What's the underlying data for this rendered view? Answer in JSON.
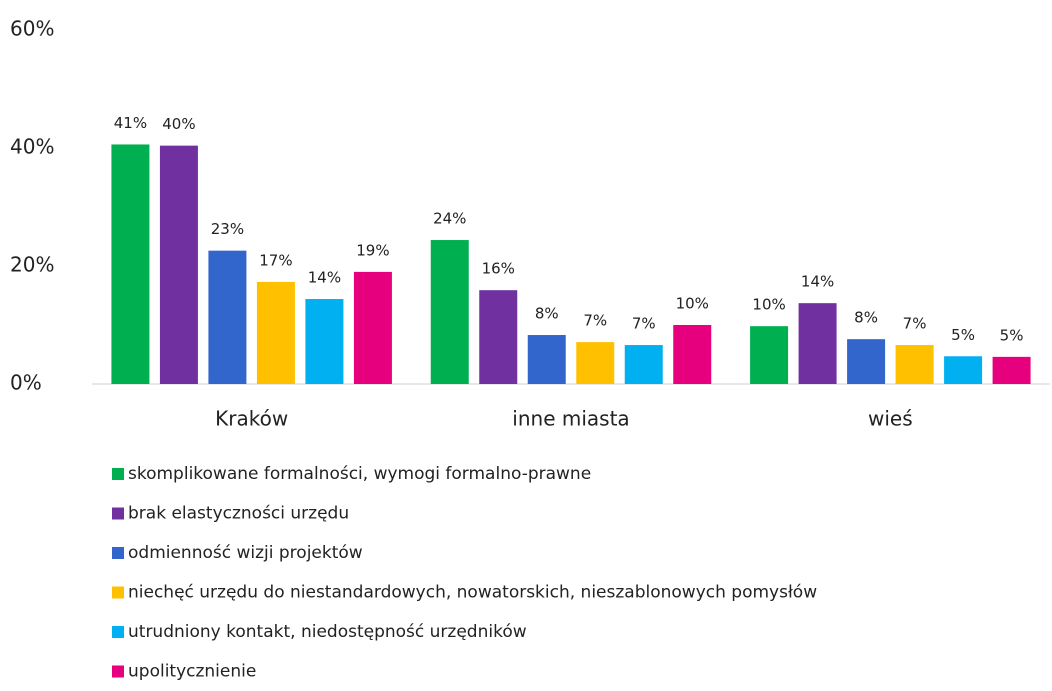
{
  "chart_data": {
    "type": "bar",
    "categories": [
      "Kraków",
      "inne miasta",
      "wieś"
    ],
    "series": [
      {
        "name": "skomplikowane formalności, wymogi formalno-prawne",
        "color": "#00b050",
        "values": [
          40.6,
          24.4,
          9.8
        ],
        "value_labels": [
          "41%",
          "24%",
          "10%"
        ]
      },
      {
        "name": "brak elastyczności urzędu",
        "color": "#7030a0",
        "values": [
          40.4,
          15.9,
          13.7
        ],
        "value_labels": [
          "40%",
          "16%",
          "14%"
        ]
      },
      {
        "name": "odmienność wizji projektów",
        "color": "#3366cc",
        "values": [
          22.6,
          8.3,
          7.6
        ],
        "value_labels": [
          "23%",
          "8%",
          "8%"
        ]
      },
      {
        "name": "niechęć urzędu do niestandardowych, nowatorskich, nieszablonowych pomysłów",
        "color": "#ffc000",
        "values": [
          17.3,
          7.1,
          6.6
        ],
        "value_labels": [
          "17%",
          "7%",
          "7%"
        ]
      },
      {
        "name": "utrudniony kontakt, niedostępność urzędników",
        "color": "#00b0f0",
        "values": [
          14.4,
          6.6,
          4.7
        ],
        "value_labels": [
          "14%",
          "7%",
          "5%"
        ]
      },
      {
        "name": "upolitycznienie",
        "color": "#e6007e",
        "values": [
          19.0,
          10.0,
          4.6
        ],
        "value_labels": [
          "19%",
          "10%",
          "5%"
        ]
      }
    ],
    "ylim": [
      0,
      60
    ],
    "yticks": [
      {
        "value": 0,
        "label": "0%"
      },
      {
        "value": 20,
        "label": "20%"
      },
      {
        "value": 40,
        "label": "40%"
      },
      {
        "value": 60,
        "label": "60%"
      }
    ],
    "grid": false,
    "legend": "bottom"
  }
}
